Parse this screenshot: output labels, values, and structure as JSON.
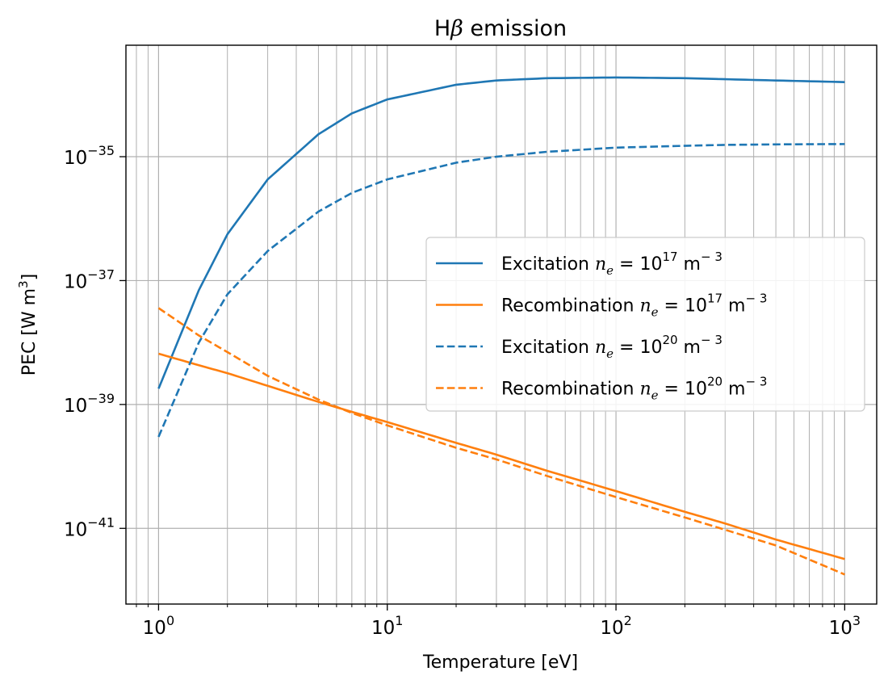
{
  "chart_data": {
    "type": "line",
    "title_prefix": "H",
    "title_symbol": "β",
    "title_suffix": " emission",
    "xlabel": "Temperature [eV]",
    "ylabel_prefix": "PEC [W m",
    "ylabel_exp": "3",
    "ylabel_suffix": "]",
    "xscale": "log",
    "yscale": "log",
    "xlim": [
      0.72,
      1380
    ],
    "ylim": [
      6e-43,
      6.3e-34
    ],
    "grid": {
      "x_major": true,
      "x_minor": true,
      "y_major": true
    },
    "x_ticks": [
      {
        "base": "10",
        "exp": "0",
        "value": 1
      },
      {
        "base": "10",
        "exp": "1",
        "value": 10
      },
      {
        "base": "10",
        "exp": "2",
        "value": 100
      },
      {
        "base": "10",
        "exp": "3",
        "value": 1000
      }
    ],
    "y_ticks": [
      {
        "base": "10",
        "exp": "−35",
        "value": 1e-35
      },
      {
        "base": "10",
        "exp": "−37",
        "value": 1e-37
      },
      {
        "base": "10",
        "exp": "−39",
        "value": 1e-39
      },
      {
        "base": "10",
        "exp": "−41",
        "value": 1e-41
      }
    ],
    "legend_position": "center-right",
    "x": [
      1,
      1.5,
      2,
      3,
      5,
      7,
      10,
      20,
      30,
      50,
      100,
      200,
      300,
      500,
      1000
    ],
    "series": [
      {
        "legend_kind": "Excitation",
        "legend_exp": "17",
        "color": "#1f77b4",
        "dash": "solid",
        "values": [
          1.8e-39,
          7e-38,
          5.6e-37,
          4.3e-36,
          2.3e-35,
          5e-35,
          8.4e-35,
          1.45e-34,
          1.7e-34,
          1.85e-34,
          1.9e-34,
          1.85e-34,
          1.78e-34,
          1.7e-34,
          1.6e-34
        ]
      },
      {
        "legend_kind": "Recombination",
        "legend_exp": "17",
        "color": "#ff7f0e",
        "dash": "solid",
        "values": [
          6.6e-39,
          4.3e-39,
          3.2e-39,
          2e-39,
          1.1e-39,
          7.6e-40,
          5.2e-40,
          2.4e-40,
          1.55e-40,
          8.5e-41,
          4e-41,
          1.85e-41,
          1.2e-41,
          6.6e-42,
          3.2e-42
        ]
      },
      {
        "legend_kind": "Excitation",
        "legend_exp": "20",
        "color": "#1f77b4",
        "dash": "dashed",
        "values": [
          3e-40,
          1e-38,
          6e-38,
          3e-37,
          1.3e-36,
          2.6e-36,
          4.3e-36,
          8e-36,
          1e-35,
          1.2e-35,
          1.4e-35,
          1.5e-35,
          1.55e-35,
          1.58e-35,
          1.6e-35
        ]
      },
      {
        "legend_kind": "Recombination",
        "legend_exp": "20",
        "color": "#ff7f0e",
        "dash": "dashed",
        "values": [
          3.6e-38,
          1.3e-38,
          7e-39,
          2.9e-39,
          1.2e-39,
          7.3e-40,
          4.6e-40,
          2e-40,
          1.3e-40,
          7e-41,
          3.2e-41,
          1.5e-41,
          9.5e-42,
          5.3e-42,
          1.8e-42
        ]
      }
    ],
    "legend_label_pre": "n",
    "legend_label_sub": "e",
    "legend_label_eq": " = 10",
    "legend_unit": " m",
    "legend_unit_exp": "− 3"
  }
}
